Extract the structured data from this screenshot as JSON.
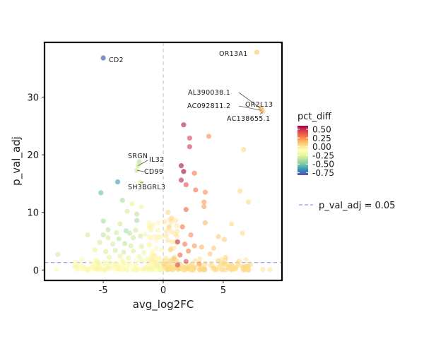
{
  "chart_data": {
    "type": "scatter",
    "title": "",
    "xlabel": "avg_log2FC",
    "ylabel": "p_val_adj",
    "xlim": [
      -9.9,
      9.9
    ],
    "ylim": [
      -1.8,
      39.5
    ],
    "x_ticks": [
      -5,
      0,
      5
    ],
    "y_ticks": [
      0,
      10,
      20,
      30
    ],
    "grid": false,
    "threshold": {
      "label": "p_val_adj = 0.05",
      "y": 1.3,
      "color": "#9999ee"
    },
    "vline_x": 0,
    "color_scale": {
      "title": "pct_diff",
      "palette": "Spectral",
      "domain": [
        -0.82,
        0.6
      ],
      "ticks": [
        0.5,
        0.25,
        0.0,
        -0.25,
        -0.5,
        -0.75
      ],
      "tick_labels": [
        "0.50",
        "0.25",
        "0.00",
        "-0.25",
        "-0.50",
        "-0.75"
      ]
    },
    "legend_position": "right",
    "labeled_points": [
      {
        "gene": "OR13A1",
        "x": 7.8,
        "y": 37.8,
        "pct_diff": 0.08
      },
      {
        "gene": "CD2",
        "x": -5.0,
        "y": 36.8,
        "pct_diff": -0.78
      },
      {
        "gene": "AL390038.1",
        "x": 8.1,
        "y": 28.1,
        "pct_diff": 0.1
      },
      {
        "gene": "OR2L13",
        "x": 8.2,
        "y": 27.9,
        "pct_diff": 0.1
      },
      {
        "gene": "AC092811.2",
        "x": 8.2,
        "y": 27.7,
        "pct_diff": 0.1
      },
      {
        "gene": "AC138655.1",
        "x": 8.3,
        "y": 27.5,
        "pct_diff": 0.1
      },
      {
        "gene": "SRGN",
        "x": -2.0,
        "y": 18.8,
        "pct_diff": -0.35
      },
      {
        "gene": "IL32",
        "x": -2.1,
        "y": 18.1,
        "pct_diff": -0.3
      },
      {
        "gene": "CD99",
        "x": -2.2,
        "y": 17.3,
        "pct_diff": -0.3
      },
      {
        "gene": "SH3BGRL3",
        "x": -1.9,
        "y": 15.2,
        "pct_diff": -0.28
      }
    ],
    "points": [
      {
        "x": 1.7,
        "y": 25.2,
        "c": 0.55
      },
      {
        "x": 3.8,
        "y": 23.2,
        "c": 0.25
      },
      {
        "x": 2.2,
        "y": 22.9,
        "c": 0.45
      },
      {
        "x": 2.2,
        "y": 21.4,
        "c": 0.48
      },
      {
        "x": 6.7,
        "y": 20.9,
        "c": 0.05
      },
      {
        "x": 1.5,
        "y": 18.1,
        "c": 0.58
      },
      {
        "x": 1.7,
        "y": 17.1,
        "c": 0.6
      },
      {
        "x": 2.6,
        "y": 16.8,
        "c": 0.3
      },
      {
        "x": 1.5,
        "y": 15.6,
        "c": 0.52
      },
      {
        "x": 1.9,
        "y": 14.8,
        "c": 0.4
      },
      {
        "x": 2.7,
        "y": 13.9,
        "c": 0.32
      },
      {
        "x": 3.5,
        "y": 13.5,
        "c": 0.25
      },
      {
        "x": 6.4,
        "y": 13.7,
        "c": 0.05
      },
      {
        "x": 7.1,
        "y": 11.8,
        "c": 0.05
      },
      {
        "x": 3.4,
        "y": 11.8,
        "c": 0.22
      },
      {
        "x": 3.4,
        "y": 11.0,
        "c": 0.2
      },
      {
        "x": 1.9,
        "y": 10.5,
        "c": 0.35
      },
      {
        "x": 3.5,
        "y": 8.2,
        "c": 0.15
      },
      {
        "x": 5.7,
        "y": 8.0,
        "c": 0.05
      },
      {
        "x": 1.6,
        "y": 7.5,
        "c": 0.3
      },
      {
        "x": 6.6,
        "y": 6.4,
        "c": 0.05
      },
      {
        "x": 2.3,
        "y": 6.1,
        "c": 0.25
      },
      {
        "x": 4.6,
        "y": 5.8,
        "c": 0.1
      },
      {
        "x": 5.1,
        "y": 5.3,
        "c": 0.08
      },
      {
        "x": 1.2,
        "y": 4.9,
        "c": 0.5
      },
      {
        "x": 1.8,
        "y": 4.5,
        "c": 0.3
      },
      {
        "x": 2.6,
        "y": 4.2,
        "c": 0.22
      },
      {
        "x": 3.2,
        "y": 4.0,
        "c": 0.15
      },
      {
        "x": 4.2,
        "y": 3.8,
        "c": 0.1
      },
      {
        "x": 2.1,
        "y": 3.3,
        "c": 0.28
      },
      {
        "x": 1.4,
        "y": 2.6,
        "c": 0.35
      },
      {
        "x": 3.9,
        "y": 2.8,
        "c": 0.1
      },
      {
        "x": 5.2,
        "y": 2.2,
        "c": 0.05
      },
      {
        "x": 1.9,
        "y": 1.5,
        "c": 0.4
      },
      {
        "x": 1.2,
        "y": 0.9,
        "c": 0.45
      },
      {
        "x": 3.0,
        "y": 1.1,
        "c": 0.2
      },
      {
        "x": 8.3,
        "y": 0.1,
        "c": 0.0
      },
      {
        "x": 8.9,
        "y": 0.1,
        "c": 0.0
      },
      {
        "x": 0.9,
        "y": 2.0,
        "c": 0.12
      },
      {
        "x": 0.6,
        "y": 3.5,
        "c": 0.08
      },
      {
        "x": 0.5,
        "y": 7.5,
        "c": 0.06
      },
      {
        "x": 0.4,
        "y": 10.0,
        "c": 0.05
      },
      {
        "x": 0.7,
        "y": 9.0,
        "c": 0.06
      },
      {
        "x": -5.2,
        "y": 13.4,
        "c": -0.55
      },
      {
        "x": -3.8,
        "y": 15.3,
        "c": -0.65
      },
      {
        "x": -3.4,
        "y": 12.1,
        "c": -0.4
      },
      {
        "x": -2.2,
        "y": 9.7,
        "c": -0.35
      },
      {
        "x": -2.2,
        "y": 8.6,
        "c": -0.4
      },
      {
        "x": -3.6,
        "y": 8.0,
        "c": -0.3
      },
      {
        "x": -5.0,
        "y": 8.5,
        "c": -0.4
      },
      {
        "x": -4.6,
        "y": 7.0,
        "c": -0.35
      },
      {
        "x": -3.1,
        "y": 6.8,
        "c": -0.4
      },
      {
        "x": -2.8,
        "y": 6.4,
        "c": -0.35
      },
      {
        "x": -2.3,
        "y": 6.9,
        "c": -0.3
      },
      {
        "x": -5.0,
        "y": 6.1,
        "c": -0.35
      },
      {
        "x": -6.3,
        "y": 6.1,
        "c": -0.3
      },
      {
        "x": -4.6,
        "y": 5.6,
        "c": -0.3
      },
      {
        "x": -3.7,
        "y": 5.4,
        "c": -0.35
      },
      {
        "x": -2.5,
        "y": 5.6,
        "c": -0.32
      },
      {
        "x": -1.9,
        "y": 5.9,
        "c": -0.3
      },
      {
        "x": -1.5,
        "y": 6.2,
        "c": -0.2
      },
      {
        "x": -5.3,
        "y": 4.8,
        "c": -0.3
      },
      {
        "x": -4.2,
        "y": 4.5,
        "c": -0.3
      },
      {
        "x": -3.2,
        "y": 4.6,
        "c": -0.35
      },
      {
        "x": -2.7,
        "y": 4.2,
        "c": -0.3
      },
      {
        "x": -1.8,
        "y": 4.1,
        "c": -0.28
      },
      {
        "x": -1.2,
        "y": 4.4,
        "c": -0.15
      },
      {
        "x": -5.7,
        "y": 3.5,
        "c": -0.25
      },
      {
        "x": -4.8,
        "y": 3.2,
        "c": -0.28
      },
      {
        "x": -4.0,
        "y": 3.4,
        "c": -0.3
      },
      {
        "x": -3.3,
        "y": 3.1,
        "c": -0.3
      },
      {
        "x": -2.5,
        "y": 3.3,
        "c": -0.28
      },
      {
        "x": -1.6,
        "y": 3.0,
        "c": -0.2
      },
      {
        "x": -0.9,
        "y": 3.2,
        "c": -0.12
      },
      {
        "x": -4.5,
        "y": 2.2,
        "c": -0.25
      },
      {
        "x": -3.6,
        "y": 2.4,
        "c": -0.25
      },
      {
        "x": -2.9,
        "y": 2.1,
        "c": -0.25
      },
      {
        "x": -2.0,
        "y": 2.3,
        "c": -0.22
      },
      {
        "x": -1.3,
        "y": 2.0,
        "c": -0.15
      },
      {
        "x": -0.6,
        "y": 2.1,
        "c": -0.08
      },
      {
        "x": -8.8,
        "y": 2.7,
        "c": -0.3
      },
      {
        "x": -8.9,
        "y": 0.1,
        "c": -0.15
      },
      {
        "x": -6.7,
        "y": 0.1,
        "c": -0.1
      },
      {
        "x": -5.4,
        "y": 1.2,
        "c": -0.2
      },
      {
        "x": -3.0,
        "y": 10.2,
        "c": -0.3
      },
      {
        "x": -2.6,
        "y": 11.5,
        "c": -0.25
      },
      {
        "x": -1.8,
        "y": 11.0,
        "c": -0.2
      },
      {
        "x": -1.2,
        "y": 8.3,
        "c": -0.15
      },
      {
        "x": -3.9,
        "y": 6.5,
        "c": -0.3
      },
      {
        "x": -3.9,
        "y": 0.6,
        "c": -0.15
      },
      {
        "x": -2.3,
        "y": 0.9,
        "c": -0.12
      },
      {
        "x": -1.0,
        "y": 1.1,
        "c": -0.08
      },
      {
        "x": -0.5,
        "y": 0.6,
        "c": -0.05
      }
    ]
  }
}
